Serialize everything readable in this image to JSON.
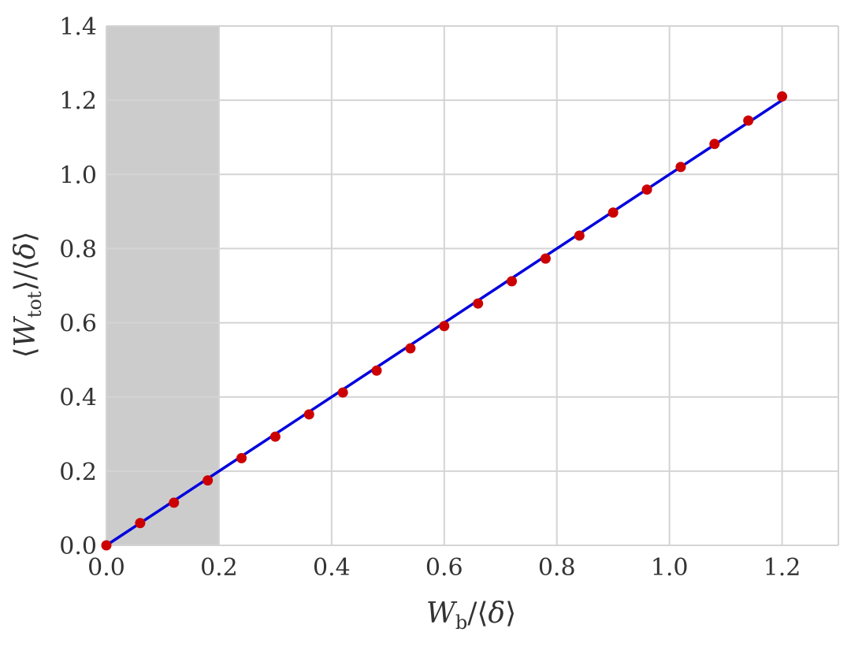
{
  "chart_data": {
    "type": "scatter",
    "xlabel": {
      "main": "W",
      "sub": "b",
      "suffix": "/⟨",
      "delta": "δ",
      "close": "⟩"
    },
    "ylabel": {
      "open": "⟨",
      "main": "W",
      "sub": "tot",
      "suffix": "⟩/⟨",
      "delta": "δ",
      "close": "⟩"
    },
    "xlim": [
      0.0,
      1.3
    ],
    "ylim": [
      0.0,
      1.4
    ],
    "x_ticks": [
      0.0,
      0.2,
      0.4,
      0.6,
      0.8,
      1.0,
      1.2
    ],
    "x_tick_labels": [
      "0.0",
      "0.2",
      "0.4",
      "0.6",
      "0.8",
      "1.0",
      "1.2"
    ],
    "y_ticks": [
      0.0,
      0.2,
      0.4,
      0.6,
      0.8,
      1.0,
      1.2,
      1.4
    ],
    "y_tick_labels": [
      "0.0",
      "0.2",
      "0.4",
      "0.6",
      "0.8",
      "1.0",
      "1.2",
      "1.4"
    ],
    "grid": true,
    "shaded_region": {
      "x_range": [
        0.0,
        0.2
      ],
      "color": "#cccccc"
    },
    "series": [
      {
        "kind": "points",
        "color": "#cc0000",
        "x": [
          0.0,
          0.06,
          0.12,
          0.18,
          0.24,
          0.3,
          0.36,
          0.42,
          0.48,
          0.54,
          0.6,
          0.66,
          0.72,
          0.78,
          0.84,
          0.9,
          0.96,
          1.02,
          1.08,
          1.14,
          1.2
        ],
        "y": [
          0.0,
          0.06,
          0.115,
          0.175,
          0.235,
          0.293,
          0.353,
          0.412,
          0.471,
          0.531,
          0.591,
          0.652,
          0.712,
          0.773,
          0.835,
          0.897,
          0.959,
          1.02,
          1.082,
          1.145,
          1.21
        ]
      },
      {
        "kind": "line",
        "color": "#0000dd",
        "x": [
          0.0,
          1.2
        ],
        "y": [
          0.0,
          1.2
        ]
      }
    ]
  }
}
